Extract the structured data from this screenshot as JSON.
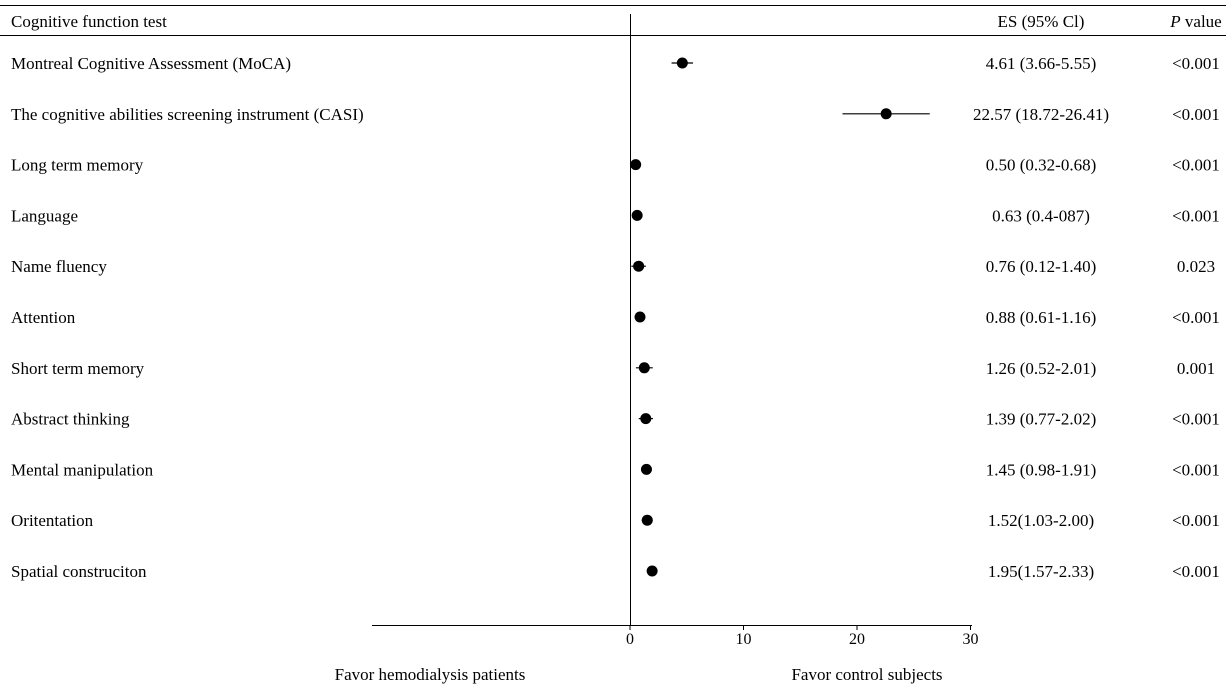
{
  "chart_data": {
    "type": "forest",
    "header": {
      "label": "Cognitive function test",
      "es": "ES (95% Cl)",
      "p_italic": "P",
      "p_rest": " value"
    },
    "rows": [
      {
        "label": "Montreal Cognitive Assessment (MoCA)",
        "es": 4.61,
        "lo": 3.66,
        "hi": 5.55,
        "es_text": "4.61 (3.66-5.55)",
        "p": "<0.001"
      },
      {
        "label": "The cognitive abilities screening instrument (CASI)",
        "es": 22.57,
        "lo": 18.72,
        "hi": 26.41,
        "es_text": "22.57 (18.72-26.41)",
        "p": "<0.001"
      },
      {
        "label": "Long term memory",
        "es": 0.5,
        "lo": 0.32,
        "hi": 0.68,
        "es_text": "0.50 (0.32-0.68)",
        "p": "<0.001"
      },
      {
        "label": "Language",
        "es": 0.63,
        "lo": 0.4,
        "hi": 0.87,
        "es_text": "0.63 (0.4-087)",
        "p": "<0.001"
      },
      {
        "label": "Name fluency",
        "es": 0.76,
        "lo": 0.12,
        "hi": 1.4,
        "es_text": "0.76 (0.12-1.40)",
        "p": "0.023"
      },
      {
        "label": "Attention",
        "es": 0.88,
        "lo": 0.61,
        "hi": 1.16,
        "es_text": "0.88 (0.61-1.16)",
        "p": "<0.001"
      },
      {
        "label": "Short term memory",
        "es": 1.26,
        "lo": 0.52,
        "hi": 2.01,
        "es_text": "1.26 (0.52-2.01)",
        "p": "0.001"
      },
      {
        "label": "Abstract thinking",
        "es": 1.39,
        "lo": 0.77,
        "hi": 2.02,
        "es_text": "1.39 (0.77-2.02)",
        "p": "<0.001"
      },
      {
        "label": "Mental manipulation",
        "es": 1.45,
        "lo": 0.98,
        "hi": 1.91,
        "es_text": "1.45 (0.98-1.91)",
        "p": "<0.001"
      },
      {
        "label": "Oritentation",
        "es": 1.52,
        "lo": 1.03,
        "hi": 2.0,
        "es_text": "1.52(1.03-2.00)",
        "p": "<0.001"
      },
      {
        "label": "Spatial construciton",
        "es": 1.95,
        "lo": 1.57,
        "hi": 2.33,
        "es_text": "1.95(1.57-2.33)",
        "p": "<0.001"
      }
    ],
    "x_ticks": [
      0,
      10,
      20,
      30
    ],
    "xlim": [
      0,
      30
    ],
    "reference_line": 0,
    "favor_left": "Favor hemodialysis patients",
    "favor_right": "Favor control subjects"
  }
}
